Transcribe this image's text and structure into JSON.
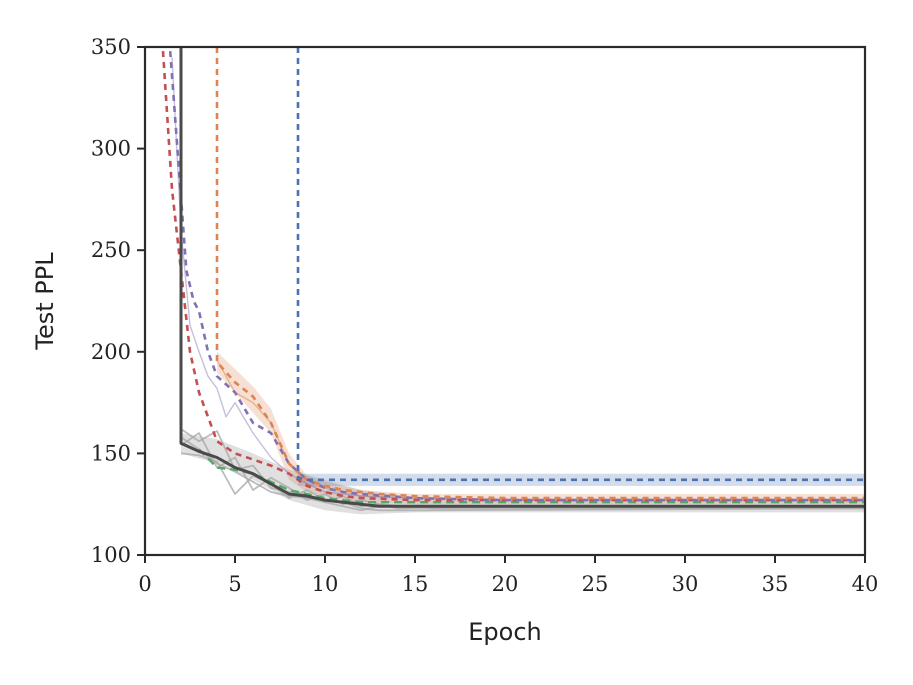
{
  "chart_data": {
    "type": "line",
    "title": "",
    "xlabel": "Epoch",
    "ylabel": "Test PPL",
    "xlim": [
      0,
      40
    ],
    "ylim": [
      100,
      350
    ],
    "xticks": [
      0,
      5,
      10,
      15,
      20,
      25,
      30,
      35,
      40
    ],
    "yticks": [
      100,
      150,
      200,
      250,
      300,
      350
    ],
    "grid": false,
    "legend": "none",
    "bands": [
      {
        "color": "#dd8452",
        "opacity": 0.25,
        "upper": [
          [
            4,
            200
          ],
          [
            6,
            183
          ],
          [
            7,
            172
          ],
          [
            8,
            150
          ],
          [
            9,
            139
          ],
          [
            10,
            136
          ],
          [
            12,
            132
          ],
          [
            15,
            130
          ],
          [
            20,
            130
          ],
          [
            40,
            130
          ]
        ],
        "lower": [
          [
            4,
            190
          ],
          [
            6,
            170
          ],
          [
            7,
            160
          ],
          [
            8,
            137
          ],
          [
            9,
            131
          ],
          [
            10,
            129
          ],
          [
            12,
            126
          ],
          [
            15,
            125
          ],
          [
            20,
            125
          ],
          [
            40,
            125
          ]
        ]
      },
      {
        "color": "#4c72b0",
        "opacity": 0.25,
        "upper": [
          [
            8.5,
            140
          ],
          [
            40,
            140
          ]
        ],
        "lower": [
          [
            8.5,
            134
          ],
          [
            40,
            134
          ]
        ]
      },
      {
        "color": "#999999",
        "opacity": 0.3,
        "upper": [
          [
            2,
            160
          ],
          [
            4,
            157
          ],
          [
            6,
            150
          ],
          [
            8,
            142
          ],
          [
            10,
            137
          ],
          [
            12,
            132
          ],
          [
            15,
            128
          ],
          [
            20,
            127
          ],
          [
            40,
            127
          ]
        ],
        "lower": [
          [
            2,
            150
          ],
          [
            4,
            145
          ],
          [
            6,
            137
          ],
          [
            8,
            127
          ],
          [
            10,
            122
          ],
          [
            12,
            120
          ],
          [
            15,
            121
          ],
          [
            20,
            121
          ],
          [
            40,
            121
          ]
        ]
      }
    ],
    "series": [
      {
        "color": "#aaaaaa",
        "width": 1.8,
        "dash": "",
        "opacity": 0.8,
        "points": [
          [
            2,
            158
          ],
          [
            3,
            152
          ],
          [
            4,
            145
          ],
          [
            5,
            141
          ],
          [
            6,
            136
          ],
          [
            7,
            131
          ],
          [
            8,
            129
          ],
          [
            9,
            128
          ],
          [
            10,
            126
          ],
          [
            11,
            124
          ],
          [
            12,
            122
          ],
          [
            13,
            124
          ],
          [
            15,
            124
          ],
          [
            20,
            124
          ],
          [
            40,
            124
          ]
        ]
      },
      {
        "color": "#aaaaaa",
        "width": 1.8,
        "dash": "",
        "opacity": 0.8,
        "points": [
          [
            2,
            154
          ],
          [
            3,
            160
          ],
          [
            4,
            143
          ],
          [
            5,
            148
          ],
          [
            6,
            132
          ],
          [
            7,
            138
          ],
          [
            8,
            133
          ],
          [
            9,
            127
          ],
          [
            10,
            130
          ],
          [
            11,
            125
          ],
          [
            12,
            127
          ],
          [
            14,
            123
          ],
          [
            20,
            124
          ],
          [
            40,
            124
          ]
        ]
      },
      {
        "color": "#aaaaaa",
        "width": 1.8,
        "dash": "",
        "opacity": 0.8,
        "points": [
          [
            2,
            150
          ],
          [
            3,
            149
          ],
          [
            4,
            146
          ],
          [
            5,
            130
          ],
          [
            6,
            139
          ],
          [
            7,
            135
          ],
          [
            8,
            128
          ],
          [
            9,
            132
          ],
          [
            10,
            127
          ],
          [
            11,
            126
          ],
          [
            12,
            123
          ],
          [
            13,
            122
          ],
          [
            15,
            122
          ],
          [
            40,
            123
          ]
        ]
      },
      {
        "color": "#aaaaaa",
        "width": 1.8,
        "dash": "",
        "opacity": 0.8,
        "points": [
          [
            2,
            162
          ],
          [
            3,
            156
          ],
          [
            4,
            161
          ],
          [
            5,
            142
          ],
          [
            6,
            144
          ],
          [
            7,
            133
          ],
          [
            8,
            131
          ],
          [
            9,
            130
          ],
          [
            10,
            126
          ],
          [
            11,
            129
          ],
          [
            12,
            124
          ],
          [
            13,
            125
          ],
          [
            16,
            123
          ],
          [
            40,
            123
          ]
        ]
      },
      {
        "color": "#dd8452",
        "width": 1.4,
        "dash": "",
        "opacity": 0.5,
        "points": [
          [
            4,
            196
          ],
          [
            5,
            180
          ],
          [
            6,
            175
          ],
          [
            7,
            165
          ],
          [
            8,
            145
          ],
          [
            9,
            135
          ],
          [
            10,
            133
          ],
          [
            12,
            129
          ],
          [
            15,
            128
          ],
          [
            20,
            127
          ],
          [
            40,
            127
          ]
        ]
      },
      {
        "color": "#8172b3",
        "width": 1.4,
        "dash": "",
        "opacity": 0.45,
        "points": [
          [
            1.5,
            345
          ],
          [
            2,
            260
          ],
          [
            2.5,
            213
          ],
          [
            3,
            200
          ],
          [
            3.5,
            188
          ],
          [
            4,
            182
          ],
          [
            4.5,
            168
          ],
          [
            5,
            175
          ],
          [
            6,
            160
          ],
          [
            7,
            148
          ],
          [
            8,
            140
          ],
          [
            9,
            135
          ],
          [
            10,
            131
          ],
          [
            12,
            129
          ],
          [
            15,
            128
          ],
          [
            20,
            127
          ],
          [
            40,
            127
          ]
        ]
      },
      {
        "color": "#55a868",
        "width": 2.4,
        "dash": "8 5",
        "opacity": 1,
        "points": [
          [
            3,
            152
          ],
          [
            4,
            143
          ],
          [
            5,
            142
          ],
          [
            6,
            140
          ],
          [
            7,
            136
          ],
          [
            8,
            132
          ],
          [
            9,
            130
          ],
          [
            10,
            128
          ],
          [
            12,
            126
          ],
          [
            15,
            126
          ],
          [
            20,
            126
          ],
          [
            40,
            126
          ]
        ]
      },
      {
        "color": "#c44e52",
        "width": 2.6,
        "dash": "6 5",
        "opacity": 1,
        "points": [
          [
            1,
            348
          ],
          [
            1.5,
            280
          ],
          [
            2,
            240
          ],
          [
            2.5,
            200
          ],
          [
            3,
            180
          ],
          [
            3.5,
            168
          ],
          [
            4,
            156
          ],
          [
            5,
            150
          ],
          [
            6,
            147
          ],
          [
            7,
            144
          ],
          [
            8,
            140
          ],
          [
            9,
            134
          ],
          [
            10,
            131
          ],
          [
            11,
            129
          ],
          [
            12,
            128
          ],
          [
            15,
            127
          ],
          [
            20,
            127
          ],
          [
            40,
            127
          ]
        ]
      },
      {
        "color": "#8172b3",
        "width": 2.6,
        "dash": "6 5",
        "opacity": 1,
        "points": [
          [
            1.4,
            348
          ],
          [
            1.8,
            300
          ],
          [
            2.3,
            240
          ],
          [
            2.7,
            225
          ],
          [
            3,
            220
          ],
          [
            3.5,
            200
          ],
          [
            4,
            188
          ],
          [
            5,
            180
          ],
          [
            6,
            165
          ],
          [
            7,
            160
          ],
          [
            8,
            145
          ],
          [
            9,
            137
          ],
          [
            10,
            133
          ],
          [
            11,
            131
          ],
          [
            12,
            130
          ],
          [
            15,
            128
          ],
          [
            20,
            127
          ],
          [
            40,
            127
          ]
        ]
      },
      {
        "color": "#dd8452",
        "width": 2.6,
        "dash": "6 5",
        "opacity": 1,
        "points": [
          [
            4,
            350
          ],
          [
            4,
            195
          ],
          [
            5,
            185
          ],
          [
            6,
            178
          ],
          [
            7,
            165
          ],
          [
            8,
            145
          ],
          [
            9,
            137
          ],
          [
            10,
            134
          ],
          [
            11,
            132
          ],
          [
            12,
            131
          ],
          [
            13,
            130
          ],
          [
            15,
            129
          ],
          [
            20,
            128
          ],
          [
            40,
            128
          ]
        ]
      },
      {
        "color": "#4c72b0",
        "width": 2.6,
        "dash": "6 5",
        "opacity": 1,
        "points": [
          [
            8.5,
            350
          ],
          [
            8.5,
            138
          ],
          [
            9,
            137
          ],
          [
            40,
            137
          ]
        ]
      },
      {
        "color": "#4a4a4a",
        "width": 3,
        "dash": "",
        "opacity": 1,
        "points": [
          [
            2,
            350
          ],
          [
            2,
            155
          ],
          [
            3,
            151
          ],
          [
            4,
            148
          ],
          [
            5,
            143
          ],
          [
            6,
            140
          ],
          [
            7,
            135
          ],
          [
            8,
            130
          ],
          [
            9,
            129
          ],
          [
            10,
            127
          ],
          [
            11,
            126
          ],
          [
            12,
            125
          ],
          [
            13,
            124
          ],
          [
            15,
            124
          ],
          [
            20,
            124
          ],
          [
            40,
            124
          ]
        ]
      }
    ]
  }
}
